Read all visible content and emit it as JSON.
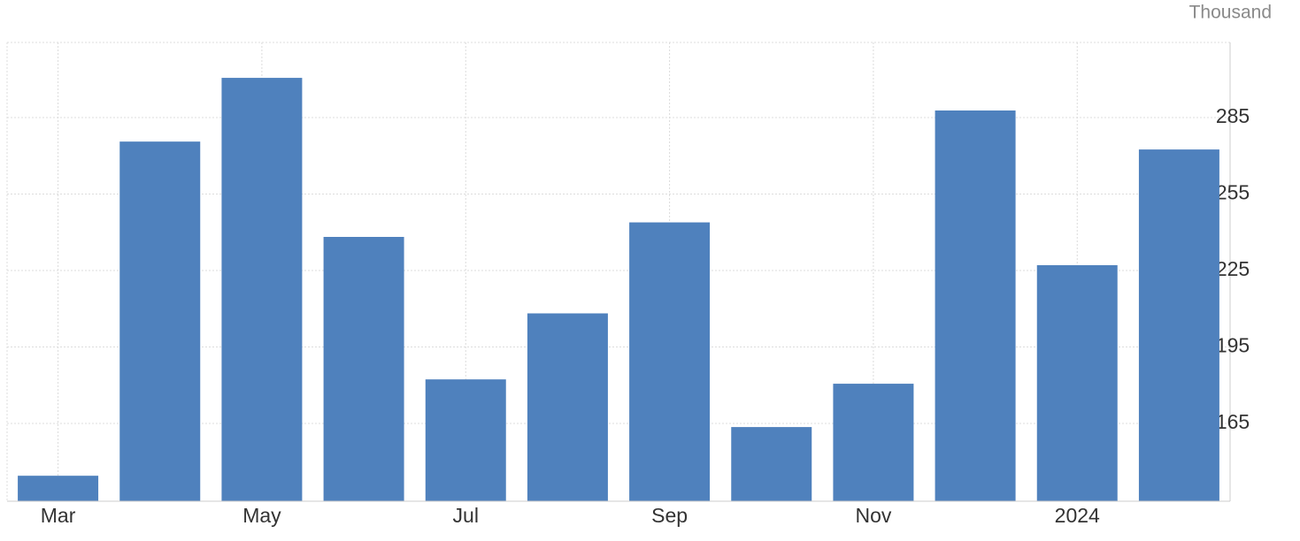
{
  "chart_data": {
    "type": "bar",
    "unit": "Thousand",
    "categories": [
      "Mar",
      null,
      "May",
      null,
      "Jul",
      null,
      "Sep",
      null,
      "Nov",
      null,
      "2024",
      null
    ],
    "values": [
      144.5,
      275.6,
      300.6,
      238.2,
      182.3,
      208.2,
      243.9,
      163.6,
      180.6,
      287.8,
      227.1,
      272.5
    ],
    "color": "#4f81bd",
    "ylim": [
      134.5,
      314.5
    ],
    "yticks": [
      165,
      195,
      225,
      255,
      285
    ],
    "grid": true
  }
}
